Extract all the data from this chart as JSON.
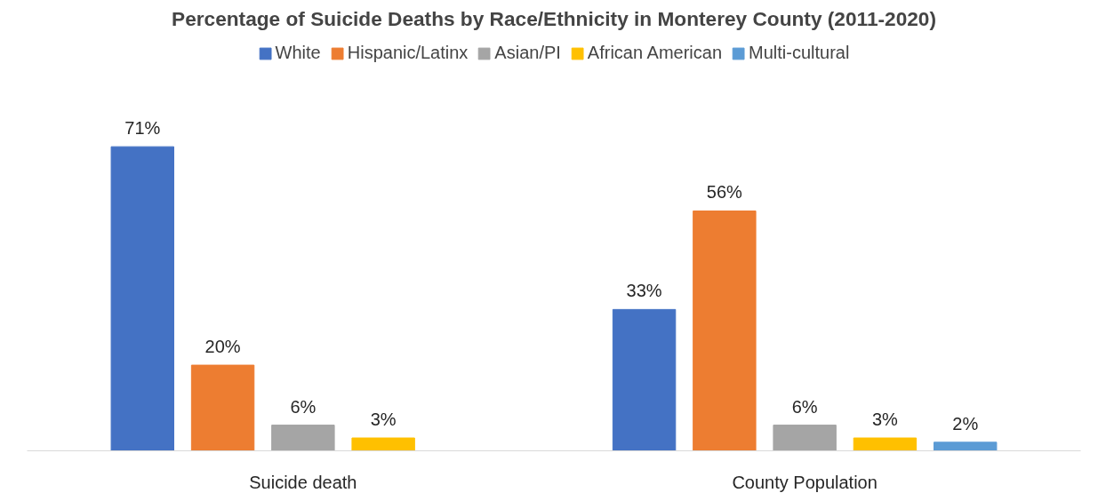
{
  "chart_data": {
    "type": "bar",
    "title": "Percentage of Suicide Deaths by Race/Ethnicity in Monterey County (2011-2020)",
    "categories": [
      "Suicide death",
      "County Population"
    ],
    "series": [
      {
        "name": "White",
        "color": "#4472c4",
        "values": [
          71,
          33
        ],
        "value_labels": [
          "71%",
          "33%"
        ]
      },
      {
        "name": "Hispanic/Latinx",
        "color": "#ed7d31",
        "values": [
          20,
          56
        ],
        "value_labels": [
          "20%",
          "56%"
        ]
      },
      {
        "name": "Asian/PI",
        "color": "#a5a5a5",
        "values": [
          6,
          6
        ],
        "value_labels": [
          "6%",
          "6%"
        ]
      },
      {
        "name": "African American",
        "color": "#ffc000",
        "values": [
          3,
          3
        ],
        "value_labels": [
          "3%",
          "3%"
        ]
      },
      {
        "name": "Multi-cultural",
        "color": "#5b9bd5",
        "values": [
          null,
          2
        ],
        "value_labels": [
          null,
          "2%"
        ]
      }
    ],
    "legend": "top",
    "tick_labels": "x"
  }
}
